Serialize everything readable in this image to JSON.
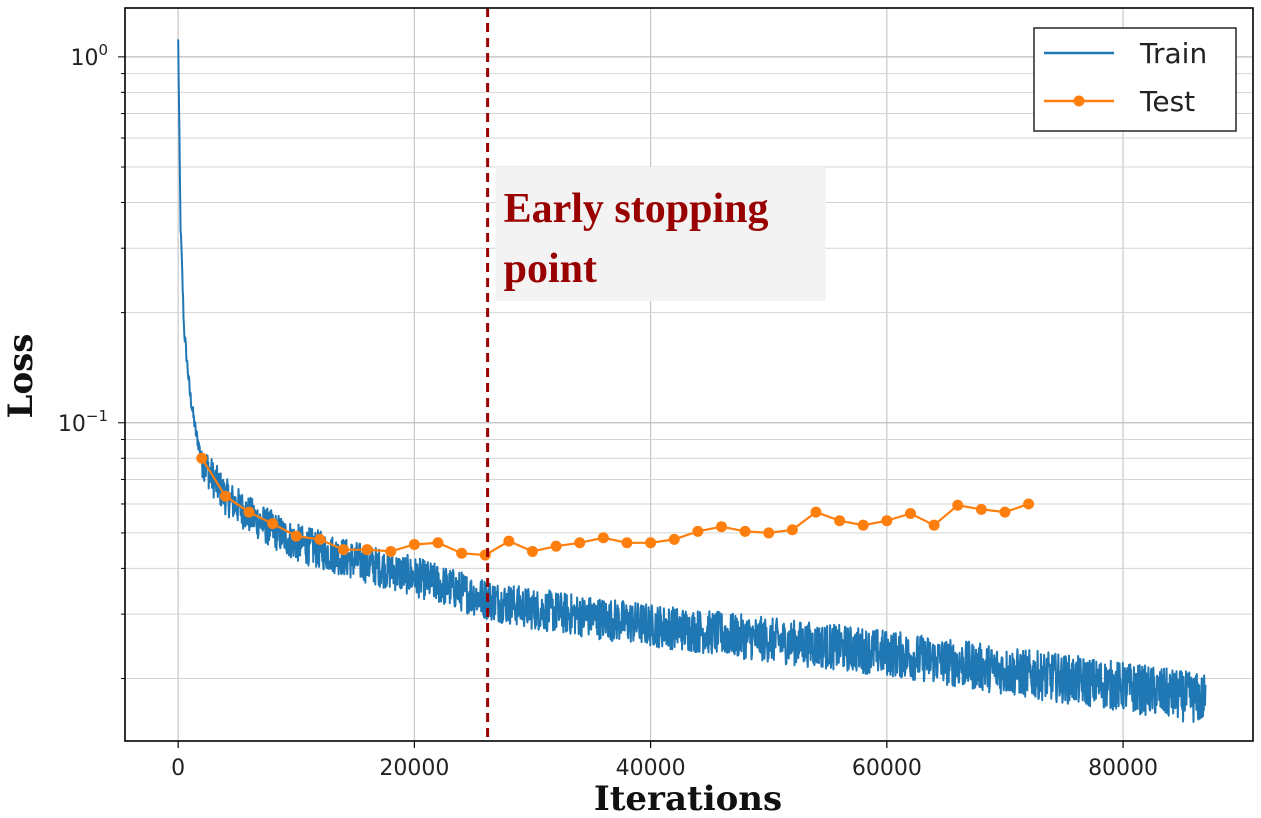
{
  "chart_data": {
    "type": "line",
    "xlabel": "Iterations",
    "ylabel": "Loss",
    "xlim": [
      -4500,
      91000
    ],
    "ylim": [
      0.0135,
      1.36
    ],
    "yscale": "log",
    "grid": true,
    "legend_position": "top-right",
    "x_ticks": [
      "0",
      "20000",
      "40000",
      "60000",
      "80000"
    ],
    "y_ticks": [
      {
        "base": "10",
        "exp": "0"
      },
      {
        "base": "10",
        "exp": "−1"
      }
    ],
    "series": [
      {
        "name": "Train",
        "color": "#1f77b4",
        "x": [
          0,
          200,
          500,
          1000,
          1500,
          2000,
          3000,
          4000,
          6000,
          8000,
          10000,
          15000,
          20000,
          26000,
          30000,
          40000,
          50000,
          60000,
          70000,
          80000,
          87000
        ],
        "y": [
          1.1,
          0.35,
          0.18,
          0.12,
          0.094,
          0.08,
          0.07,
          0.063,
          0.056,
          0.051,
          0.047,
          0.042,
          0.038,
          0.033,
          0.031,
          0.028,
          0.0255,
          0.0235,
          0.021,
          0.019,
          0.0175
        ]
      },
      {
        "name": "Test",
        "color": "#ff7f0e",
        "x": [
          2000,
          4000,
          6000,
          8000,
          10000,
          12000,
          14000,
          16000,
          18000,
          20000,
          22000,
          24000,
          26000,
          28000,
          30000,
          32000,
          34000,
          36000,
          38000,
          40000,
          42000,
          44000,
          46000,
          48000,
          50000,
          52000,
          54000,
          56000,
          58000,
          60000,
          62000,
          64000,
          66000,
          68000,
          70000,
          72000
        ],
        "y": [
          0.08,
          0.063,
          0.057,
          0.053,
          0.049,
          0.048,
          0.045,
          0.045,
          0.0445,
          0.0465,
          0.047,
          0.044,
          0.0435,
          0.0475,
          0.0445,
          0.046,
          0.047,
          0.0485,
          0.047,
          0.047,
          0.048,
          0.0505,
          0.052,
          0.0505,
          0.05,
          0.051,
          0.057,
          0.054,
          0.0525,
          0.054,
          0.0565,
          0.0525,
          0.0595,
          0.058,
          0.057,
          0.06
        ]
      }
    ],
    "annotation": {
      "text_lines": [
        "Early stopping",
        "point"
      ],
      "x": 26200,
      "color": "#990000"
    }
  }
}
